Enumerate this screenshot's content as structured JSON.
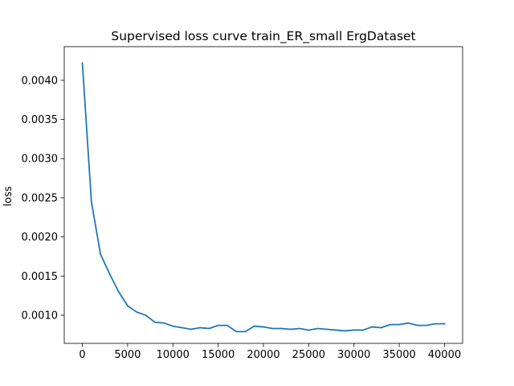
{
  "chart_data": {
    "type": "line",
    "title": "Supervised loss curve train_ER_small ErgDataset",
    "xlabel": "",
    "ylabel": "loss",
    "xlim": [
      -2000,
      42000
    ],
    "ylim": [
      0.00064,
      0.00443
    ],
    "grid": false,
    "x_ticks": [
      0,
      5000,
      10000,
      15000,
      20000,
      25000,
      30000,
      35000,
      40000
    ],
    "x_tick_labels": [
      "0",
      "5000",
      "10000",
      "15000",
      "20000",
      "25000",
      "30000",
      "35000",
      "40000"
    ],
    "y_ticks": [
      0.001,
      0.0015,
      0.002,
      0.0025,
      0.003,
      0.0035,
      0.004
    ],
    "y_tick_labels": [
      "0.0010",
      "0.0015",
      "0.0020",
      "0.0025",
      "0.0030",
      "0.0035",
      "0.0040"
    ],
    "series": [
      {
        "name": "loss",
        "color": "#1f77b4",
        "x": [
          0,
          1000,
          2000,
          3000,
          4000,
          5000,
          6000,
          7000,
          8000,
          9000,
          10000,
          11000,
          12000,
          13000,
          14000,
          15000,
          16000,
          17000,
          18000,
          19000,
          20000,
          21000,
          22000,
          23000,
          24000,
          25000,
          26000,
          27000,
          28000,
          29000,
          30000,
          31000,
          32000,
          33000,
          34000,
          35000,
          36000,
          37000,
          38000,
          39000,
          40000
        ],
        "values": [
          0.00422,
          0.00245,
          0.00178,
          0.00153,
          0.0013,
          0.00112,
          0.00104,
          0.001,
          0.00091,
          0.0009,
          0.00086,
          0.00084,
          0.00082,
          0.00084,
          0.00083,
          0.00087,
          0.00087,
          0.00079,
          0.00079,
          0.00086,
          0.00085,
          0.00083,
          0.00083,
          0.00082,
          0.00083,
          0.00081,
          0.00083,
          0.00082,
          0.00081,
          0.0008,
          0.00081,
          0.00081,
          0.00085,
          0.00084,
          0.00088,
          0.00088,
          0.0009,
          0.00087,
          0.00087,
          0.00089,
          0.00089
        ]
      }
    ]
  }
}
